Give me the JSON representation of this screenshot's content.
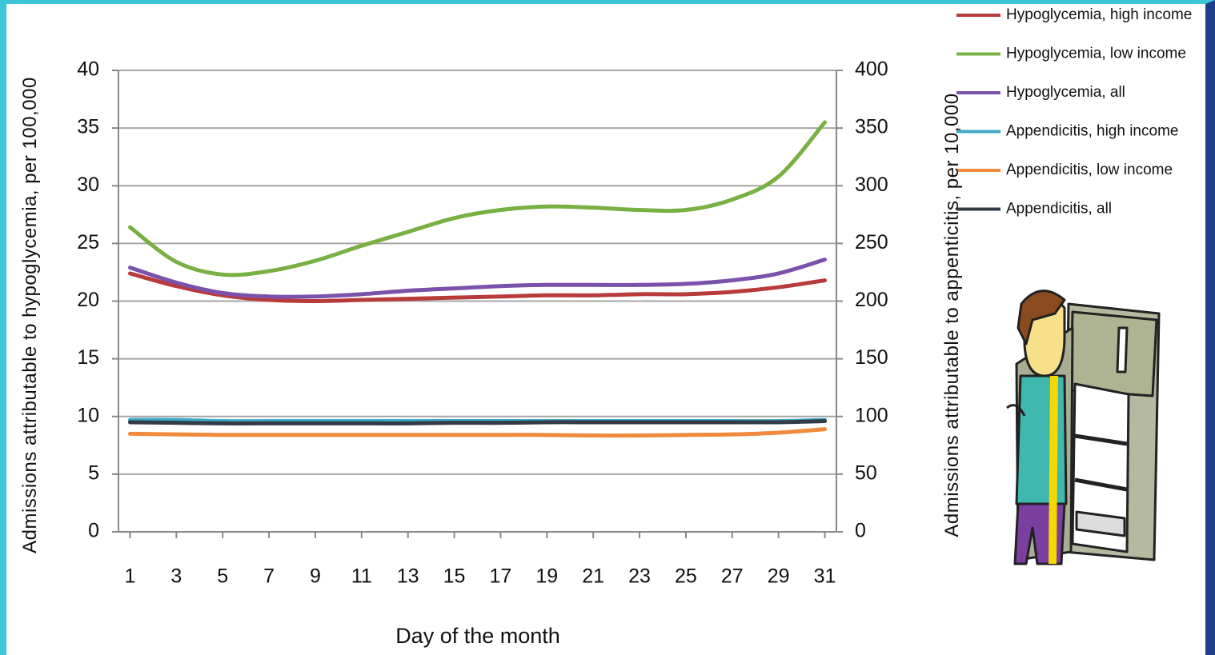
{
  "chart_data": {
    "type": "line",
    "x_label": "Day of the month",
    "y_label": "Admissions attributable to hypoglycemia, per 100,000",
    "y2_label": "Admissions attributable to appenticitis, per 10,000",
    "x": [
      1,
      3,
      5,
      7,
      9,
      11,
      13,
      15,
      17,
      19,
      21,
      23,
      25,
      27,
      29,
      31
    ],
    "xlim": [
      0.5,
      31.5
    ],
    "xticks": [
      1,
      3,
      5,
      7,
      9,
      11,
      13,
      15,
      17,
      19,
      21,
      23,
      25,
      27,
      29,
      31
    ],
    "ylim": [
      0,
      40
    ],
    "yticks": [
      0,
      5,
      10,
      15,
      20,
      25,
      30,
      35,
      40
    ],
    "y2lim": [
      0,
      400
    ],
    "y2ticks": [
      0,
      50,
      100,
      150,
      200,
      250,
      300,
      350,
      400
    ],
    "grid": true,
    "legend": "top-right",
    "series": [
      {
        "name": "Hypoglycemia, high income",
        "color": "#b83b3b",
        "values": [
          22.4,
          21.3,
          20.5,
          20.1,
          20.0,
          20.1,
          20.2,
          20.3,
          20.4,
          20.5,
          20.5,
          20.6,
          20.6,
          20.8,
          21.2,
          21.8
        ]
      },
      {
        "name": "Hypoglycemia, low income",
        "color": "#78b043",
        "values": [
          26.4,
          23.4,
          22.3,
          22.6,
          23.5,
          24.8,
          26.0,
          27.2,
          27.9,
          28.2,
          28.1,
          27.9,
          27.9,
          28.8,
          30.8,
          35.5
        ]
      },
      {
        "name": "Hypoglycemia, all",
        "color": "#7b52ab",
        "values": [
          22.9,
          21.6,
          20.7,
          20.4,
          20.4,
          20.6,
          20.9,
          21.1,
          21.3,
          21.4,
          21.4,
          21.4,
          21.5,
          21.8,
          22.4,
          23.6
        ]
      },
      {
        "name": "Appendicitis, high income",
        "color": "#3fa9c9",
        "axis": "y2",
        "values": [
          97,
          97,
          96,
          96,
          96,
          96,
          96,
          96,
          96,
          96,
          96,
          96,
          96,
          96,
          96,
          97
        ]
      },
      {
        "name": "Appendicitis, low income",
        "color": "#f08a3c",
        "axis": "y2",
        "values": [
          85,
          84.5,
          84,
          84,
          84,
          84,
          84,
          84,
          84,
          84,
          83.5,
          83.5,
          84,
          84.5,
          86,
          89
        ]
      },
      {
        "name": "Appendicitis, all",
        "color": "#333b47",
        "axis": "y2",
        "values": [
          95,
          94.5,
          94,
          94,
          94,
          94,
          94,
          94.5,
          94.5,
          95,
          95,
          95,
          95,
          95,
          95,
          96
        ]
      }
    ]
  }
}
